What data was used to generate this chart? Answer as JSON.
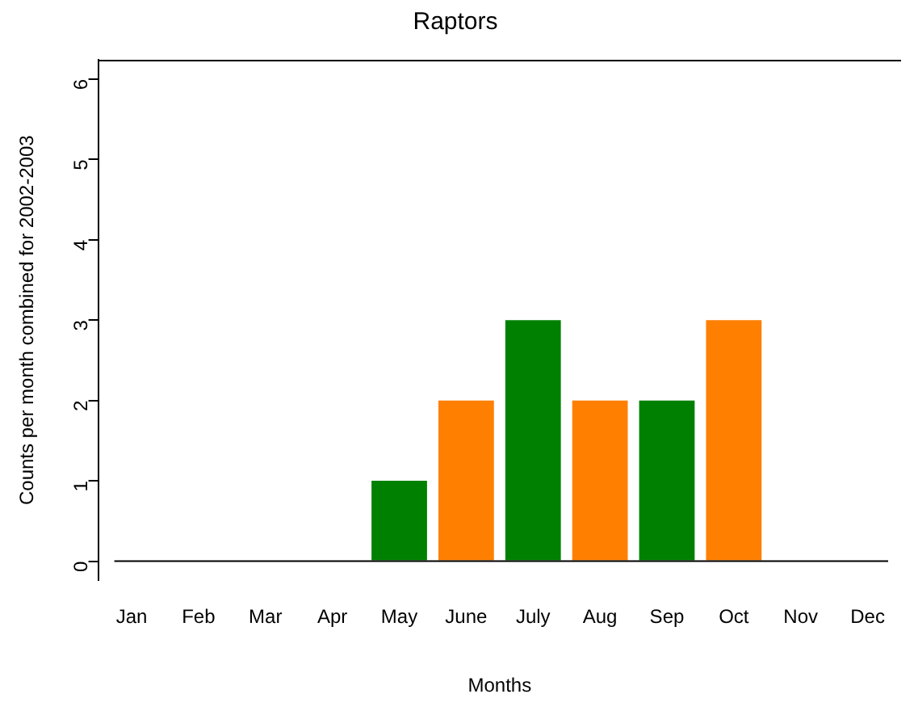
{
  "chart_data": {
    "type": "bar",
    "title": "Raptors",
    "xlabel": "Months",
    "ylabel": "Counts per month combined for 2002-2003",
    "categories": [
      "Jan",
      "Feb",
      "Mar",
      "Apr",
      "May",
      "June",
      "July",
      "Aug",
      "Sep",
      "Oct",
      "Nov",
      "Dec"
    ],
    "values": [
      0,
      0,
      0,
      0,
      1,
      2,
      3,
      2,
      2,
      3,
      0,
      0
    ],
    "colors": [
      "#008000",
      "#ff7f00",
      "#008000",
      "#ff7f00",
      "#008000",
      "#ff7f00",
      "#008000",
      "#ff7f00",
      "#008000",
      "#ff7f00",
      "#008000",
      "#ff7f00"
    ],
    "ylim": [
      -0.24,
      6.24
    ],
    "yticks": [
      0,
      1,
      2,
      3,
      4,
      5,
      6
    ],
    "grid": false,
    "legend": false
  }
}
